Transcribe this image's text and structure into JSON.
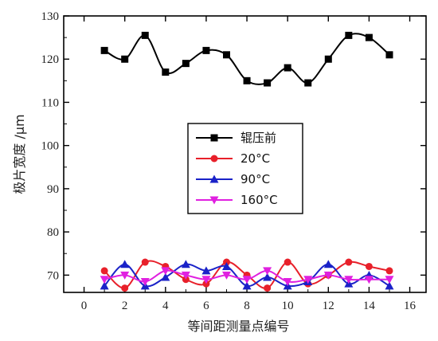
{
  "chart_data": {
    "type": "line",
    "title": "",
    "xlabel": "等间距测量点编号",
    "ylabel": "极片宽度 /μm",
    "xlim": [
      -1,
      16.8
    ],
    "ylim": [
      66,
      130
    ],
    "x_ticks": [
      0,
      2,
      4,
      6,
      8,
      10,
      12,
      14,
      16
    ],
    "y_ticks": [
      70,
      80,
      90,
      100,
      110,
      120,
      130
    ],
    "legend_position": "center",
    "grid": false,
    "x": [
      1,
      2,
      3,
      4,
      5,
      6,
      7,
      8,
      9,
      10,
      11,
      12,
      13,
      14,
      15
    ],
    "series": [
      {
        "name": "辊压前",
        "color": "#000000",
        "marker": "square",
        "values": [
          122,
          120,
          125.5,
          117,
          119,
          122,
          121,
          115,
          114.5,
          118,
          114.5,
          120,
          125.5,
          125,
          121
        ]
      },
      {
        "name": "20°C",
        "color": "#e8202a",
        "marker": "circle",
        "values": [
          71,
          67,
          73,
          72,
          69,
          68,
          73,
          70,
          67,
          73,
          68,
          70,
          73,
          72,
          71
        ]
      },
      {
        "name": "90°C",
        "color": "#1a22c8",
        "marker": "triangle-up",
        "values": [
          67.5,
          72.5,
          67.5,
          69.5,
          72.5,
          71,
          72,
          67.5,
          69.5,
          67.5,
          68.5,
          72.5,
          68,
          70,
          67.5
        ]
      },
      {
        "name": "160°C",
        "color": "#e020e0",
        "marker": "triangle-down",
        "values": [
          69,
          70,
          68.5,
          71,
          70,
          69,
          70,
          69,
          71,
          68.5,
          69,
          70,
          69,
          69,
          69
        ]
      }
    ]
  }
}
